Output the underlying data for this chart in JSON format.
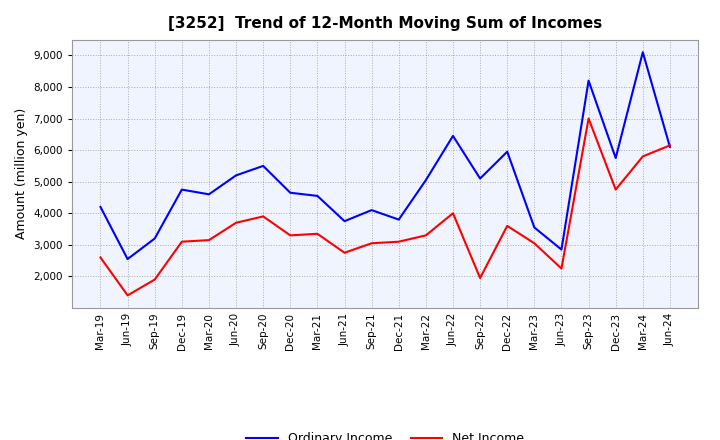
{
  "title": "[3252]  Trend of 12-Month Moving Sum of Incomes",
  "ylabel": "Amount (million yen)",
  "background_color": "#ffffff",
  "plot_background_color": "#f0f4ff",
  "grid_color": "#aaaaaa",
  "x_labels": [
    "Mar-19",
    "Jun-19",
    "Sep-19",
    "Dec-19",
    "Mar-20",
    "Jun-20",
    "Sep-20",
    "Dec-20",
    "Mar-21",
    "Jun-21",
    "Sep-21",
    "Dec-21",
    "Mar-22",
    "Jun-22",
    "Sep-22",
    "Dec-22",
    "Mar-23",
    "Jun-23",
    "Sep-23",
    "Dec-23",
    "Mar-24",
    "Jun-24"
  ],
  "ordinary_income": [
    4200,
    2550,
    3200,
    4750,
    4600,
    5200,
    5500,
    4650,
    4550,
    3750,
    4100,
    3800,
    5050,
    6450,
    5100,
    5950,
    3550,
    2850,
    8200,
    5750,
    9100,
    6100
  ],
  "net_income": [
    2600,
    1400,
    1900,
    3100,
    3150,
    3700,
    3900,
    3300,
    3350,
    2750,
    3050,
    3100,
    3300,
    4000,
    1950,
    3600,
    3050,
    2250,
    7000,
    4750,
    5800,
    6150
  ],
  "ordinary_income_color": "#0000ff",
  "net_income_color": "#ff0000",
  "line_width": 1.5,
  "ylim": [
    1000,
    9500
  ],
  "yticks": [
    2000,
    3000,
    4000,
    5000,
    6000,
    7000,
    8000,
    9000
  ],
  "title_fontsize": 11,
  "axis_label_fontsize": 9,
  "tick_fontsize": 7.5,
  "legend_fontsize": 9
}
